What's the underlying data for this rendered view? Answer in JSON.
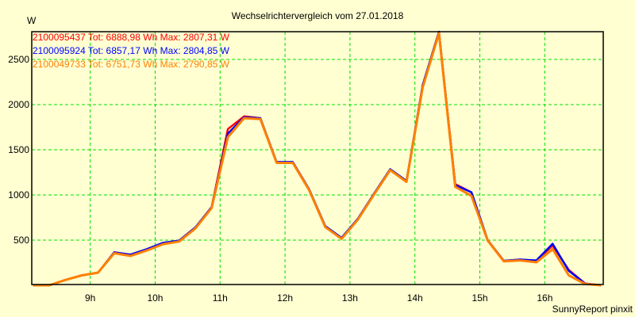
{
  "chart_data": {
    "type": "line",
    "title": "Wechselrichtervergleich vom 27.01.2018",
    "ylabel": "W",
    "xlabel": "",
    "footer": "SunnyReport pinxit",
    "xlim": [
      8.1,
      16.9
    ],
    "ylim": [
      0,
      2807
    ],
    "grid": true,
    "legend_placement": "top-left",
    "x_ticks": [
      9,
      10,
      11,
      12,
      13,
      14,
      15,
      16
    ],
    "x_tick_labels": [
      "9h",
      "10h",
      "11h",
      "12h",
      "13h",
      "14h",
      "15h",
      "16h"
    ],
    "y_ticks": [
      500,
      1000,
      1500,
      2000,
      2500
    ],
    "y_tick_labels": [
      "500",
      "1000",
      "1500",
      "2000",
      "2500"
    ],
    "x": [
      8.12,
      8.37,
      8.62,
      8.87,
      9.12,
      9.37,
      9.62,
      9.87,
      10.12,
      10.37,
      10.62,
      10.87,
      11.12,
      11.37,
      11.62,
      11.87,
      12.12,
      12.37,
      12.62,
      12.87,
      13.12,
      13.37,
      13.62,
      13.87,
      14.12,
      14.37,
      14.62,
      14.87,
      15.12,
      15.37,
      15.62,
      15.87,
      16.12,
      16.37,
      16.62,
      16.87
    ],
    "series": [
      {
        "name": "2100095437",
        "legend": "2100095437 Tot: 6888,98 Wh Max: 2807,31 W",
        "color": "#ff0000",
        "values": [
          0,
          0,
          60,
          110,
          140,
          365,
          335,
          395,
          465,
          495,
          640,
          865,
          1730,
          1870,
          1850,
          1360,
          1360,
          1060,
          650,
          520,
          730,
          1010,
          1280,
          1150,
          2210,
          2807,
          1120,
          1030,
          500,
          270,
          285,
          270,
          440,
          170,
          20,
          0
        ]
      },
      {
        "name": "2100095924",
        "legend": "2100095924 Tot: 6857,17 Wh Max: 2804,85 W",
        "color": "#0000ff",
        "values": [
          0,
          0,
          60,
          110,
          140,
          365,
          340,
          400,
          470,
          495,
          640,
          865,
          1680,
          1860,
          1850,
          1365,
          1365,
          1065,
          655,
          525,
          735,
          1015,
          1285,
          1155,
          2215,
          2805,
          1110,
          1030,
          500,
          270,
          285,
          275,
          460,
          160,
          20,
          0
        ]
      },
      {
        "name": "2100049733",
        "legend": "2100049733 Tot: 6751,73 Wh Max: 2790,85 W",
        "color": "#ff8000",
        "values": [
          0,
          0,
          60,
          110,
          140,
          355,
          325,
          385,
          455,
          485,
          630,
          855,
          1640,
          1850,
          1840,
          1355,
          1355,
          1055,
          645,
          515,
          725,
          1005,
          1275,
          1145,
          2190,
          2791,
          1090,
          990,
          495,
          265,
          275,
          255,
          400,
          110,
          15,
          0
        ]
      }
    ],
    "colors": {
      "background": "#ffffd2",
      "grid": "#00e000",
      "axis": "#000000"
    }
  }
}
